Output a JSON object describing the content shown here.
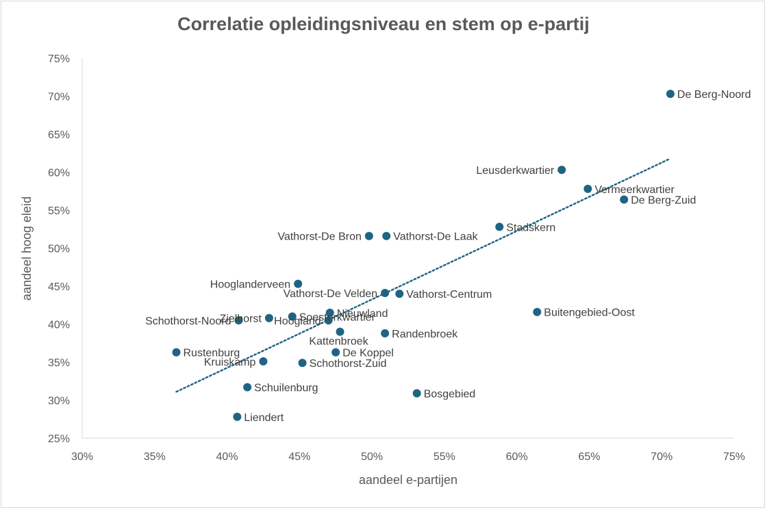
{
  "chart_data": {
    "type": "scatter",
    "title": "Correlatie opleidingsniveau en stem op e-partij",
    "xlabel": "aandeel e-partijen",
    "ylabel": "aandeel hoog eleid",
    "xlim": [
      0.3,
      0.75
    ],
    "ylim": [
      0.25,
      0.75
    ],
    "x_ticks": [
      "30%",
      "35%",
      "40%",
      "45%",
      "50%",
      "55%",
      "60%",
      "65%",
      "70%",
      "75%"
    ],
    "y_ticks": [
      "25%",
      "30%",
      "35%",
      "40%",
      "45%",
      "50%",
      "55%",
      "60%",
      "65%",
      "70%",
      "75%"
    ],
    "grid": false,
    "trendline": {
      "style": "dotted",
      "from": [
        0.365,
        0.311
      ],
      "to": [
        0.706,
        0.618
      ]
    },
    "point_color": "#1f6485",
    "trend_color": "#1f6485",
    "points": [
      {
        "label": "De Berg-Noord",
        "x": 0.706,
        "y": 0.703,
        "pos": "right"
      },
      {
        "label": "Leusderkwartier",
        "x": 0.631,
        "y": 0.603,
        "pos": "left"
      },
      {
        "label": "Vermeerkwartier",
        "x": 0.649,
        "y": 0.578,
        "pos": "right"
      },
      {
        "label": "De Berg-Zuid",
        "x": 0.674,
        "y": 0.564,
        "pos": "right"
      },
      {
        "label": "Stadskern",
        "x": 0.588,
        "y": 0.528,
        "pos": "right"
      },
      {
        "label": "Vathorst-De Laak",
        "x": 0.51,
        "y": 0.516,
        "pos": "right"
      },
      {
        "label": "Vathorst-De Bron",
        "x": 0.498,
        "y": 0.516,
        "pos": "left"
      },
      {
        "label": "Hooglanderveen",
        "x": 0.449,
        "y": 0.453,
        "pos": "left"
      },
      {
        "label": "Vathorst-Centrum",
        "x": 0.519,
        "y": 0.44,
        "pos": "right"
      },
      {
        "label": "Vathorst-De Velden",
        "x": 0.509,
        "y": 0.441,
        "pos": "left"
      },
      {
        "label": "Buitengebied-Oost",
        "x": 0.614,
        "y": 0.416,
        "pos": "right"
      },
      {
        "label": "Nieuwland",
        "x": 0.471,
        "y": 0.415,
        "pos": "right"
      },
      {
        "label": "Soesterkwartier",
        "x": 0.445,
        "y": 0.41,
        "pos": "right"
      },
      {
        "label": "Zielhorst",
        "x": 0.429,
        "y": 0.408,
        "pos": "left"
      },
      {
        "label": "Schothorst-Noord",
        "x": 0.408,
        "y": 0.405,
        "pos": "left"
      },
      {
        "label": "Hoogland",
        "x": 0.47,
        "y": 0.405,
        "pos": "left"
      },
      {
        "label": "Kattenbroek",
        "x": 0.478,
        "y": 0.39,
        "pos": "below"
      },
      {
        "label": "Randenbroek",
        "x": 0.509,
        "y": 0.388,
        "pos": "right"
      },
      {
        "label": "Rustenburg",
        "x": 0.365,
        "y": 0.363,
        "pos": "right"
      },
      {
        "label": "De Koppel",
        "x": 0.475,
        "y": 0.363,
        "pos": "right"
      },
      {
        "label": "Kruiskamp",
        "x": 0.425,
        "y": 0.351,
        "pos": "left"
      },
      {
        "label": "Schothorst-Zuid",
        "x": 0.452,
        "y": 0.349,
        "pos": "right"
      },
      {
        "label": "Schuilenburg",
        "x": 0.414,
        "y": 0.317,
        "pos": "right"
      },
      {
        "label": "Bosgebied",
        "x": 0.531,
        "y": 0.309,
        "pos": "right"
      },
      {
        "label": "Liendert",
        "x": 0.407,
        "y": 0.278,
        "pos": "right"
      }
    ]
  }
}
